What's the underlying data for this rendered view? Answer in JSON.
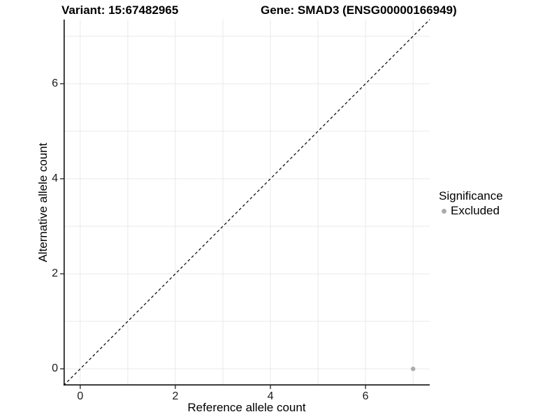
{
  "header": {
    "variant_title": "Variant: 15:67482965",
    "gene_title": "Gene: SMAD3 (ENSG00000166949)"
  },
  "chart_data": {
    "type": "scatter",
    "xlabel": "Reference allele count",
    "ylabel": "Alternative allele count",
    "xlim": [
      -0.35,
      7.35
    ],
    "ylim": [
      -0.35,
      7.35
    ],
    "x_major_ticks": [
      0,
      2,
      4,
      6
    ],
    "y_major_ticks": [
      0,
      2,
      4,
      6
    ],
    "grid": true,
    "gridline_every": 1,
    "identity_line": {
      "style": "dashed",
      "from": [
        -0.35,
        -0.35
      ],
      "to": [
        7.35,
        7.35
      ],
      "color": "#000000"
    },
    "series": [
      {
        "name": "Excluded",
        "color": "#ababab",
        "points": [
          {
            "x": 7,
            "y": 0
          }
        ]
      }
    ],
    "legend": {
      "title": "Significance",
      "position": "right",
      "items": [
        {
          "label": "Excluded",
          "color": "#ababab"
        }
      ]
    }
  },
  "colors": {
    "gridline": "#e9e9e9",
    "axis_line": "#111111",
    "tick_mark": "#333333",
    "tick_label": "#1a1a1a",
    "background": "#ffffff"
  }
}
